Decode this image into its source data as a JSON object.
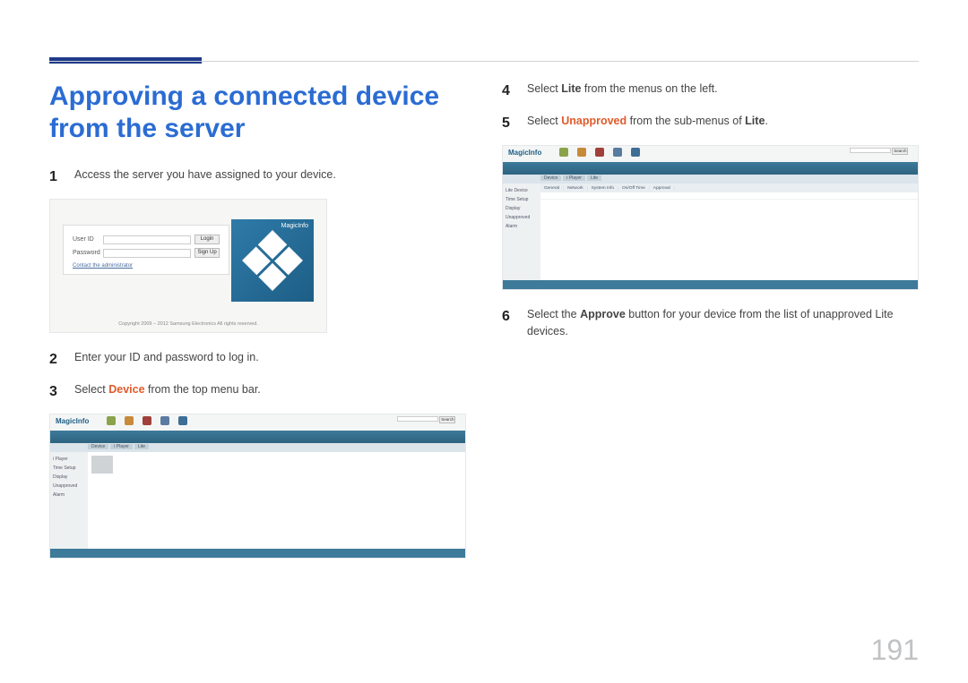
{
  "page_number": "191",
  "title": "Approving a connected device from the server",
  "accent_color": "#1e3a8a",
  "title_color": "#2b6cd3",
  "highlight_color": "#e05a2b",
  "steps_left": {
    "s1": {
      "num": "1",
      "text": "Access the server you have assigned to your device."
    },
    "s2": {
      "num": "2",
      "text": "Enter your ID and password to log in."
    },
    "s3": {
      "num": "3",
      "prefix": "Select ",
      "hl": "Device",
      "suffix": " from the top menu bar."
    }
  },
  "steps_right": {
    "s4": {
      "num": "4",
      "prefix": "Select ",
      "hl": "Lite",
      "suffix": " from the menus on the left."
    },
    "s5": {
      "num": "5",
      "prefix": "Select ",
      "hl": "Unapproved",
      "suffix": " from the sub-menus of ",
      "hl2": "Lite",
      "suffix2": "."
    },
    "s6": {
      "num": "6",
      "prefix": "Select the ",
      "hl": "Approve",
      "suffix": " button for your device from the list of unapproved Lite devices."
    }
  },
  "login_shot": {
    "brand": "MagicInfo",
    "user_id_label": "User ID",
    "password_label": "Password",
    "login_btn": "Login",
    "signup_btn": "Sign Up",
    "contact_link": "Contact the administrator",
    "footer": "Copyright 2009 – 2012 Samsung Electronics All rights reserved."
  },
  "app_shot": {
    "brand": "MagicInfo",
    "nav_icons": [
      {
        "label": "Content",
        "color": "#8aa34b"
      },
      {
        "label": "Schedule",
        "color": "#c78a3a"
      },
      {
        "label": "Device",
        "color": "#a0403a"
      },
      {
        "label": "User",
        "color": "#5a7ba0"
      },
      {
        "label": "Setting",
        "color": "#3e6e96"
      }
    ],
    "sidebar_device": [
      "i Player",
      "Time Setup",
      "Display",
      "Unapproved",
      "Alarm"
    ],
    "sidebar_lite": [
      "Lite Device",
      "Time Setup",
      "Display",
      "Unapproved",
      "Alarm"
    ],
    "toolbar_tabs": [
      "Device",
      "i Player",
      "Lite"
    ],
    "table_cols": [
      "",
      "General",
      "Network",
      "System Info",
      "On/Off Time",
      "Approval"
    ],
    "search_btn": "Search"
  }
}
